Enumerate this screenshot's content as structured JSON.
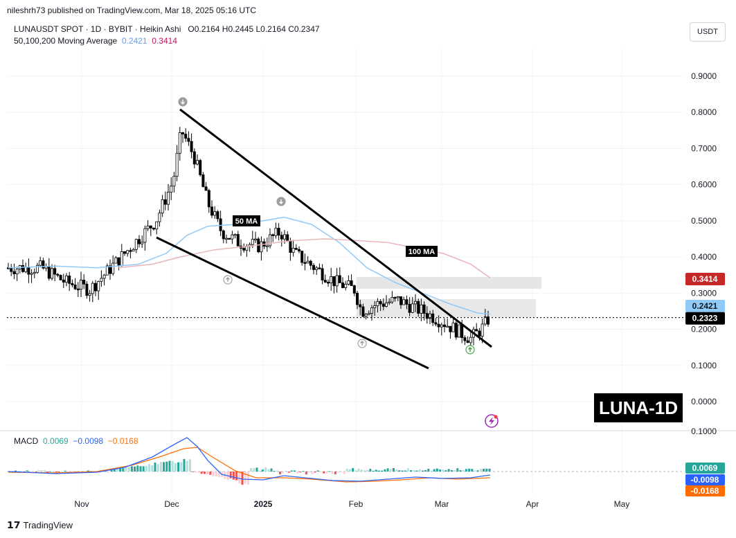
{
  "publisher_line": "nileshrh73 published on TradingView.com, Mar 18, 2025 05:16 UTC",
  "legend": {
    "symbol": "LUNAUSDT SPOT · 1D · BYBIT · Heikin Ashi",
    "ohlc": "O0.2164  H0.2445  L0.2164  C0.2347",
    "ma_label": "50,100,200 Moving Average",
    "ma_values": [
      "0.2421",
      "0.3414"
    ],
    "ma_colors": [
      "#5b9cf6",
      "#c2185b"
    ]
  },
  "currency_button": "USDT",
  "badge": "LUNA-1D",
  "footer_brand": "TradingView",
  "macd_legend": {
    "label": "MACD",
    "values": [
      "0.0069",
      "−0.0098",
      "−0.0168"
    ],
    "colors": [
      "#26a69a",
      "#2962ff",
      "#ff6d00"
    ]
  },
  "chart_data": {
    "type": "candlestick",
    "x_ticks": [
      "Nov",
      "Dec",
      "2025",
      "Feb",
      "Mar",
      "Apr",
      "May"
    ],
    "y_ticks": [
      "0.9000",
      "0.8000",
      "0.7000",
      "0.6000",
      "0.5000",
      "0.4000",
      "0.3000",
      "0.2000",
      "0.1000",
      "0.0000"
    ],
    "ylim": [
      -0.08,
      1.0
    ],
    "annotations": [
      "50 MA",
      "100 MA"
    ],
    "price_labels": [
      {
        "value": "0.3414",
        "color": "#c62828"
      },
      {
        "value": "0.2421",
        "color": "#90caf9"
      },
      {
        "value": "0.2323",
        "color": "#000000"
      }
    ],
    "current_price": 0.2323,
    "macd": {
      "y_tick": "0.1000",
      "labels": [
        {
          "value": "0.0069",
          "color": "#26a69a"
        },
        {
          "value": "-0.0098",
          "color": "#2962ff"
        },
        {
          "value": "-0.0168",
          "color": "#ff6d00"
        }
      ]
    }
  }
}
